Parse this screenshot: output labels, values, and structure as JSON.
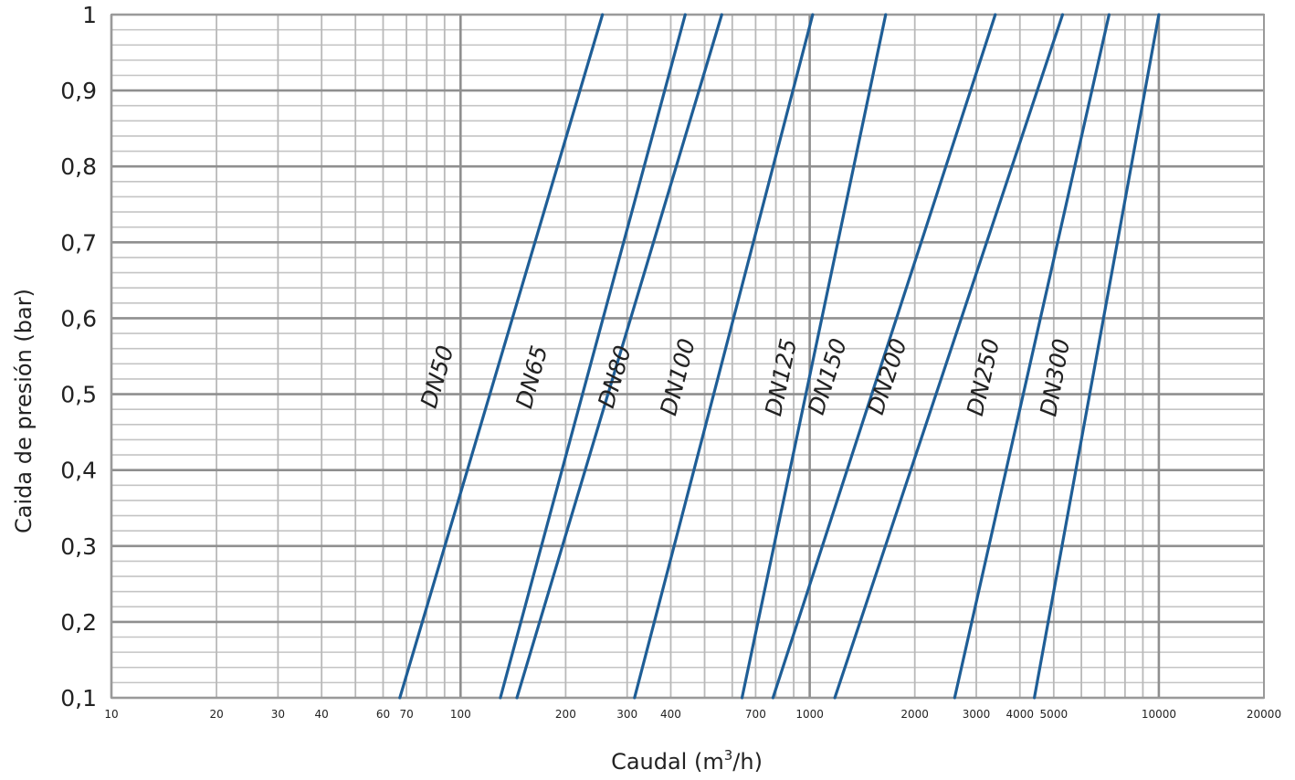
{
  "chart_data": {
    "type": "line",
    "xlabel_text": "Caudal (m",
    "xlabel_sup": "3",
    "xlabel_tail": "/h)",
    "ylabel": "Caida de presión (bar)",
    "x_scale": "log",
    "xlim": [
      10,
      20000
    ],
    "ylim": [
      0.1,
      1
    ],
    "grid": true,
    "line_color": "#1f5e96",
    "x_tick_labels": [
      {
        "value": 10,
        "label": "10"
      },
      {
        "value": 20,
        "label": "20"
      },
      {
        "value": 30,
        "label": "30"
      },
      {
        "value": 40,
        "label": "40"
      },
      {
        "value": 60,
        "label": "60"
      },
      {
        "value": 70,
        "label": "70"
      },
      {
        "value": 100,
        "label": "100"
      },
      {
        "value": 200,
        "label": "200"
      },
      {
        "value": 300,
        "label": "300"
      },
      {
        "value": 400,
        "label": "400"
      },
      {
        "value": 700,
        "label": "700"
      },
      {
        "value": 1000,
        "label": "1000"
      },
      {
        "value": 2000,
        "label": "2000"
      },
      {
        "value": 3000,
        "label": "3000"
      },
      {
        "value": 4000,
        "label": "4000"
      },
      {
        "value": 5000,
        "label": "5000"
      },
      {
        "value": 10000,
        "label": "10000"
      },
      {
        "value": 20000,
        "label": "20000"
      }
    ],
    "y_tick_labels": [
      {
        "value": 1.0,
        "label": "1"
      },
      {
        "value": 0.9,
        "label": "0,9"
      },
      {
        "value": 0.8,
        "label": "0,8"
      },
      {
        "value": 0.7,
        "label": "0,7"
      },
      {
        "value": 0.6,
        "label": "0,6"
      },
      {
        "value": 0.5,
        "label": "0,5"
      },
      {
        "value": 0.4,
        "label": "0,4"
      },
      {
        "value": 0.3,
        "label": "0,3"
      },
      {
        "value": 0.2,
        "label": "0,2"
      },
      {
        "value": 0.1,
        "label": "0,1"
      }
    ],
    "series": [
      {
        "name": "DN50",
        "points": [
          [
            67,
            0.1
          ],
          [
            255,
            1.0
          ]
        ],
        "label_at": [
          90,
          0.52
        ]
      },
      {
        "name": "DN65",
        "points": [
          [
            130,
            0.1
          ],
          [
            440,
            1.0
          ]
        ],
        "label_at": [
          168,
          0.52
        ]
      },
      {
        "name": "DN80",
        "points": [
          [
            145,
            0.1
          ],
          [
            560,
            1.0
          ]
        ],
        "label_at": [
          290,
          0.52
        ]
      },
      {
        "name": "DN100",
        "points": [
          [
            315,
            0.1
          ],
          [
            1020,
            1.0
          ]
        ],
        "label_at": [
          440,
          0.52
        ]
      },
      {
        "name": "DN125",
        "points": [
          [
            640,
            0.1
          ],
          [
            1650,
            1.0
          ]
        ],
        "label_at": [
          870,
          0.52
        ]
      },
      {
        "name": "DN150",
        "points": [
          [
            785,
            0.1
          ],
          [
            3400,
            1.0
          ]
        ],
        "label_at": [
          1180,
          0.52
        ]
      },
      {
        "name": "DN200",
        "points": [
          [
            1180,
            0.1
          ],
          [
            5300,
            1.0
          ]
        ],
        "label_at": [
          1750,
          0.52
        ]
      },
      {
        "name": "DN250",
        "points": [
          [
            2600,
            0.1
          ],
          [
            7200,
            1.0
          ]
        ],
        "label_at": [
          3300,
          0.52
        ]
      },
      {
        "name": "DN300",
        "points": [
          [
            4400,
            0.1
          ],
          [
            10000,
            1.0
          ]
        ],
        "label_at": [
          5300,
          0.52
        ]
      }
    ]
  }
}
